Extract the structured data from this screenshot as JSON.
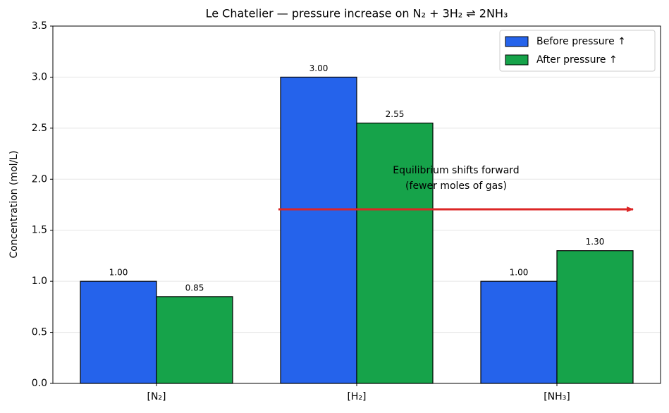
{
  "chart_data": {
    "type": "bar",
    "title": "Le Chatelier — pressure increase on N₂ + 3H₂ ⇌ 2NH₃",
    "y_label": "Concentration (mol/L)",
    "categories": [
      "[N₂]",
      "[H₂]",
      "[NH₃]"
    ],
    "series": [
      {
        "name": "Before pressure ↑",
        "color": "#2563eb",
        "values": [
          1.0,
          3.0,
          1.0
        ],
        "value_labels": [
          "1.00",
          "3.00",
          "1.00"
        ]
      },
      {
        "name": "After pressure ↑",
        "color": "#16a34a",
        "values": [
          0.85,
          2.55,
          1.3
        ],
        "value_labels": [
          "0.85",
          "2.55",
          "1.30"
        ]
      }
    ],
    "ylim": [
      0,
      3.5
    ],
    "yticks": [
      {
        "value": 0,
        "label": "0.0"
      },
      0.5,
      {
        "value": 1,
        "label": "1.0"
      },
      1.5,
      {
        "value": 2,
        "label": "2.0"
      },
      2.5,
      {
        "value": 3,
        "label": "3.0"
      },
      3.5
    ],
    "grid": true,
    "legend": "upper right",
    "annotation": [
      "Equilibrium shifts forward",
      "(fewer moles of gas)"
    ],
    "annotation_color": "#dc2626"
  }
}
